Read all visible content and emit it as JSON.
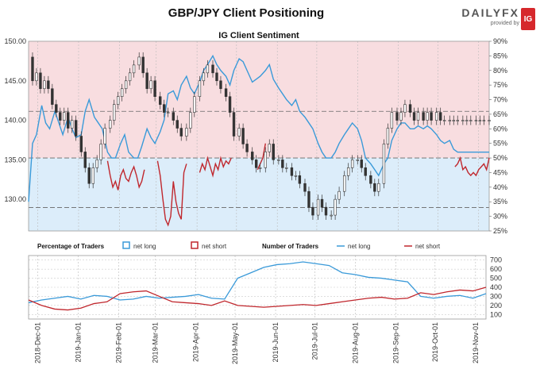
{
  "title": "GBP/JPY Client Positioning",
  "brand": {
    "name_a": "DAILY",
    "name_b": "FX",
    "provided_by": "provided by",
    "badge": "IG"
  },
  "colors": {
    "long": "#3a9ad9",
    "short": "#c0272d",
    "price": "#333333",
    "short_zone": "#f8dde0",
    "long_zone": "#dcedfa"
  },
  "chart_data": [
    {
      "type": "line",
      "title": "IG Client Sentiment",
      "y_left": {
        "ticks": [
          130.0,
          135.0,
          140.0,
          145.0,
          150.0
        ],
        "range": [
          126,
          150
        ]
      },
      "y_right": {
        "ticks": [
          "25%",
          "30%",
          "35%",
          "40%",
          "45%",
          "50%",
          "55%",
          "60%",
          "65%",
          "70%",
          "75%",
          "80%",
          "85%",
          "90%"
        ],
        "range": [
          25,
          90
        ]
      },
      "reference_lines_pct": [
        33,
        50,
        66
      ],
      "series": [
        {
          "kind": "price",
          "x": [
            0,
            3,
            6,
            9,
            12,
            15,
            18,
            21,
            24,
            27,
            30,
            33,
            36,
            40,
            43,
            46,
            49,
            52,
            55,
            58,
            62,
            65,
            68,
            71,
            74,
            77,
            80,
            84,
            87,
            90,
            93,
            96,
            100,
            103,
            106,
            110,
            113,
            116,
            120,
            123,
            126,
            130,
            133,
            136,
            140,
            143,
            146,
            150,
            153,
            156,
            160,
            163,
            166,
            170,
            173,
            176,
            180,
            183,
            186,
            190,
            193,
            196,
            200,
            203,
            206,
            210,
            213,
            216,
            220,
            223,
            226,
            230,
            233,
            236,
            240,
            243,
            246,
            250,
            253,
            256,
            260,
            263,
            266,
            270,
            273,
            276,
            280,
            283,
            286,
            290,
            293,
            296,
            300,
            303,
            306,
            310,
            313,
            316,
            320,
            323,
            326,
            330,
            333,
            336,
            340,
            343,
            346,
            350
          ],
          "y": [
            148,
            145,
            146,
            144,
            145,
            144,
            142,
            141,
            140,
            141,
            139,
            140,
            138,
            136,
            134,
            132,
            134,
            135,
            137,
            139,
            140,
            142,
            143,
            144,
            145,
            146,
            147,
            148,
            146,
            144,
            145,
            143,
            142,
            141,
            141,
            140,
            139,
            138,
            139,
            141,
            143,
            145,
            146,
            147,
            146,
            145,
            144,
            143,
            141,
            138,
            139,
            137,
            136,
            135,
            134,
            134,
            136,
            137,
            135,
            135,
            134,
            134,
            133,
            133,
            132,
            131,
            129,
            128,
            130,
            129,
            128,
            128,
            130,
            131,
            133,
            134,
            135,
            135,
            134,
            133,
            132,
            131,
            132,
            137,
            139,
            141,
            140,
            141,
            142,
            141,
            140,
            141,
            140,
            141,
            140,
            141,
            140,
            140,
            140,
            140,
            140,
            140,
            140,
            140,
            140,
            140,
            140,
            140
          ]
        },
        {
          "kind": "pct_long",
          "x": [
            0,
            3,
            6,
            10,
            13,
            16,
            20,
            23,
            26,
            30,
            33,
            36,
            40,
            43,
            46,
            50,
            53,
            56,
            60,
            63,
            66,
            70,
            73,
            76,
            80,
            83,
            86,
            90,
            93,
            96,
            100,
            103,
            106,
            110,
            113,
            116,
            120,
            123,
            126,
            130,
            133,
            136,
            140,
            143,
            146,
            150,
            153,
            156,
            160,
            163,
            166,
            170,
            173,
            176,
            180,
            183,
            186,
            190,
            193,
            196,
            200,
            203,
            206,
            210,
            213,
            216,
            220,
            223,
            226,
            230,
            233,
            236,
            240,
            243,
            246,
            250,
            253,
            256,
            260,
            263,
            266,
            270,
            273,
            276,
            280,
            283,
            286,
            290,
            293,
            296,
            300,
            303,
            306,
            310,
            313,
            316,
            320,
            323,
            326,
            330,
            333,
            336,
            340,
            343,
            346,
            350
          ],
          "y": [
            35,
            55,
            58,
            68,
            62,
            60,
            66,
            62,
            58,
            64,
            60,
            57,
            58,
            66,
            70,
            64,
            62,
            60,
            52,
            50,
            50,
            55,
            58,
            52,
            50,
            50,
            54,
            60,
            57,
            55,
            59,
            63,
            72,
            73,
            70,
            75,
            78,
            74,
            72,
            76,
            80,
            82,
            85,
            82,
            80,
            78,
            75,
            80,
            84,
            83,
            80,
            76,
            77,
            78,
            80,
            82,
            77,
            74,
            72,
            70,
            68,
            70,
            66,
            64,
            62,
            60,
            55,
            52,
            50,
            50,
            52,
            55,
            58,
            60,
            62,
            60,
            56,
            50,
            48,
            46,
            44,
            48,
            50,
            56,
            60,
            62,
            62,
            60,
            60,
            61,
            60,
            61,
            60,
            58,
            56,
            55,
            56,
            53,
            52,
            52,
            52,
            52,
            52,
            52,
            52,
            52
          ]
        },
        {
          "kind": "pct_short_segments",
          "segments": [
            {
              "x": [
                60,
                62,
                64,
                66,
                68,
                70,
                72,
                74,
                76,
                78,
                80,
                82,
                84,
                86,
                88
              ],
              "y": [
                49,
                44,
                40,
                42,
                39,
                44,
                46,
                43,
                42,
                45,
                47,
                44,
                40,
                42,
                46
              ]
            },
            {
              "x": [
                98,
                100,
                102,
                104,
                106,
                108,
                110,
                112,
                114,
                116,
                118,
                120
              ],
              "y": [
                49,
                44,
                36,
                29,
                27,
                30,
                42,
                35,
                31,
                29,
                45,
                48
              ]
            },
            {
              "x": [
                130,
                132,
                134,
                136,
                138,
                140,
                142,
                144,
                146,
                148,
                150,
                152,
                154
              ],
              "y": [
                45,
                48,
                46,
                50,
                47,
                44,
                48,
                46,
                50,
                47,
                49,
                48,
                50
              ]
            },
            {
              "x": [
                174,
                176,
                178,
                180
              ],
              "y": [
                46,
                48,
                50,
                55
              ]
            },
            {
              "x": [
                324,
                326,
                328,
                330,
                332,
                334,
                336,
                338,
                340,
                342,
                344,
                346,
                348,
                350
              ],
              "y": [
                47,
                48,
                50,
                46,
                47,
                45,
                44,
                45,
                44,
                46,
                47,
                48,
                46,
                50
              ]
            }
          ]
        }
      ]
    },
    {
      "type": "line",
      "legend": {
        "pct_title": "Percentage of Traders",
        "net_long": "net long",
        "net_short": "net short",
        "num_title": "Number of Traders"
      },
      "y_right": {
        "ticks": [
          100,
          200,
          300,
          400,
          500,
          600,
          700
        ],
        "range": [
          50,
          750
        ]
      },
      "series": [
        {
          "name": "net long",
          "x": [
            0,
            10,
            20,
            30,
            40,
            50,
            60,
            70,
            80,
            90,
            100,
            110,
            120,
            130,
            140,
            150,
            160,
            170,
            180,
            190,
            200,
            210,
            220,
            230,
            240,
            250,
            260,
            270,
            280,
            290,
            300,
            310,
            320,
            330,
            340,
            350
          ],
          "y": [
            230,
            260,
            280,
            300,
            270,
            310,
            300,
            260,
            270,
            300,
            280,
            290,
            300,
            320,
            280,
            270,
            500,
            560,
            620,
            650,
            660,
            680,
            660,
            640,
            560,
            540,
            510,
            500,
            480,
            460,
            300,
            280,
            300,
            310,
            280,
            330
          ]
        },
        {
          "name": "net short",
          "x": [
            0,
            10,
            20,
            30,
            40,
            50,
            60,
            70,
            80,
            90,
            100,
            110,
            120,
            130,
            140,
            150,
            160,
            170,
            180,
            190,
            200,
            210,
            220,
            230,
            240,
            250,
            260,
            270,
            280,
            290,
            300,
            310,
            320,
            330,
            340,
            350
          ],
          "y": [
            260,
            200,
            160,
            150,
            170,
            220,
            240,
            330,
            350,
            360,
            300,
            240,
            230,
            220,
            200,
            250,
            200,
            190,
            180,
            190,
            200,
            210,
            200,
            220,
            240,
            260,
            280,
            290,
            270,
            280,
            340,
            320,
            350,
            370,
            360,
            400
          ]
        }
      ],
      "x_labels": [
        "2018-Dec-01",
        "2019-Jan-01",
        "2019-Feb-01",
        "2019-Mar-01",
        "2019-Apr-01",
        "2019-May-01",
        "2019-Jun-01",
        "2019-Jul-01",
        "2019-Aug-01",
        "2019-Sep-01",
        "2019-Oct-01",
        "2019-Nov-01"
      ],
      "x_label_pos": [
        7,
        38,
        69,
        97,
        128,
        158,
        189,
        219,
        250,
        281,
        311,
        342
      ]
    }
  ]
}
